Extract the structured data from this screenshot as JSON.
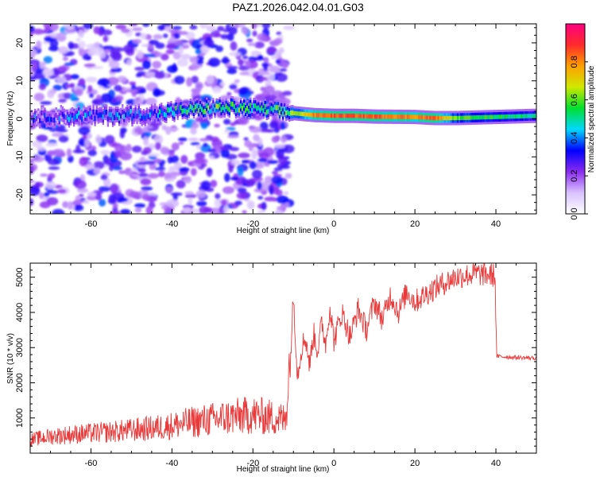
{
  "title": "PAZ1.2026.042.04.01.G03",
  "chart_data": [
    {
      "type": "heatmap",
      "name": "spectrogram",
      "xlabel": "Height of straight line (km)",
      "ylabel": "Frequency (Hz)",
      "xlim": [
        -75,
        50
      ],
      "ylim": [
        -25,
        25
      ],
      "xticks": [
        -60,
        -40,
        -20,
        0,
        20,
        40
      ],
      "xtick_labels": [
        "-60",
        "-40",
        "-20",
        "0",
        "20",
        "40"
      ],
      "yticks": [
        -20,
        -10,
        0,
        10,
        20
      ],
      "ytick_labels": [
        "-20",
        "-10",
        "0",
        "10",
        "20"
      ],
      "colorbar": {
        "label": "Normalized spectral amplitude",
        "range": [
          0,
          1
        ],
        "ticks": [
          0.0,
          0.2,
          0.4,
          0.6,
          0.8
        ],
        "tick_labels": [
          "0.0",
          "0.2",
          "0.4",
          "0.6",
          "0.8"
        ],
        "colors": [
          "#ffffff",
          "#d9c2ff",
          "#8a2cf0",
          "#0000ff",
          "#00d8ff",
          "#00e030",
          "#cfe800",
          "#ffa000",
          "#ff2a2a",
          "#ff0080"
        ]
      },
      "ridge": {
        "x": [
          -75,
          -60,
          -45,
          -35,
          -25,
          -15,
          -10,
          -5,
          0,
          5,
          10,
          20,
          25,
          30,
          40,
          50
        ],
        "frequency_hz": [
          0.5,
          0.8,
          1.2,
          2.5,
          3.0,
          2.2,
          1.5,
          1.0,
          0.8,
          0.8,
          0.6,
          0.5,
          0.2,
          0.2,
          0.5,
          0.8
        ],
        "amplitude": [
          0.3,
          0.35,
          0.4,
          0.5,
          0.55,
          0.5,
          0.6,
          0.8,
          0.85,
          0.85,
          0.85,
          0.8,
          0.85,
          0.6,
          0.55,
          0.5
        ]
      }
    },
    {
      "type": "line",
      "name": "snr",
      "xlabel": "Height of straight line (km)",
      "ylabel": "SNR (10 * v/v)",
      "xlim": [
        -75,
        50
      ],
      "ylim": [
        0,
        5400
      ],
      "xticks": [
        -60,
        -40,
        -20,
        0,
        20,
        40
      ],
      "xtick_labels": [
        "-60",
        "-40",
        "-20",
        "0",
        "20",
        "40"
      ],
      "yticks": [
        1000,
        2000,
        3000,
        4000,
        5000
      ],
      "ytick_labels": [
        "1000",
        "2000",
        "3000",
        "4000",
        "5000"
      ],
      "color": "#e83a3a",
      "series": [
        {
          "name": "SNR",
          "x": [
            -75,
            -70,
            -65,
            -60,
            -55,
            -50,
            -45,
            -40,
            -35,
            -30,
            -25,
            -20,
            -15,
            -12,
            -11,
            -10,
            -9,
            -8,
            -7,
            -6,
            -5,
            -4,
            -3,
            -2,
            -1,
            0,
            2,
            4,
            6,
            8,
            10,
            12,
            14,
            16,
            18,
            20,
            25,
            30,
            35,
            39.8,
            40.2,
            45,
            50
          ],
          "y": [
            300,
            380,
            420,
            450,
            480,
            520,
            560,
            620,
            700,
            760,
            820,
            860,
            800,
            750,
            2000,
            4500,
            2200,
            3000,
            3300,
            2500,
            3400,
            2900,
            3700,
            3100,
            4200,
            3200,
            4000,
            3300,
            4100,
            3500,
            4300,
            3800,
            4500,
            4000,
            4600,
            4300,
            4700,
            5000,
            5100,
            5050,
            2750,
            2720,
            2700
          ]
        }
      ]
    }
  ]
}
